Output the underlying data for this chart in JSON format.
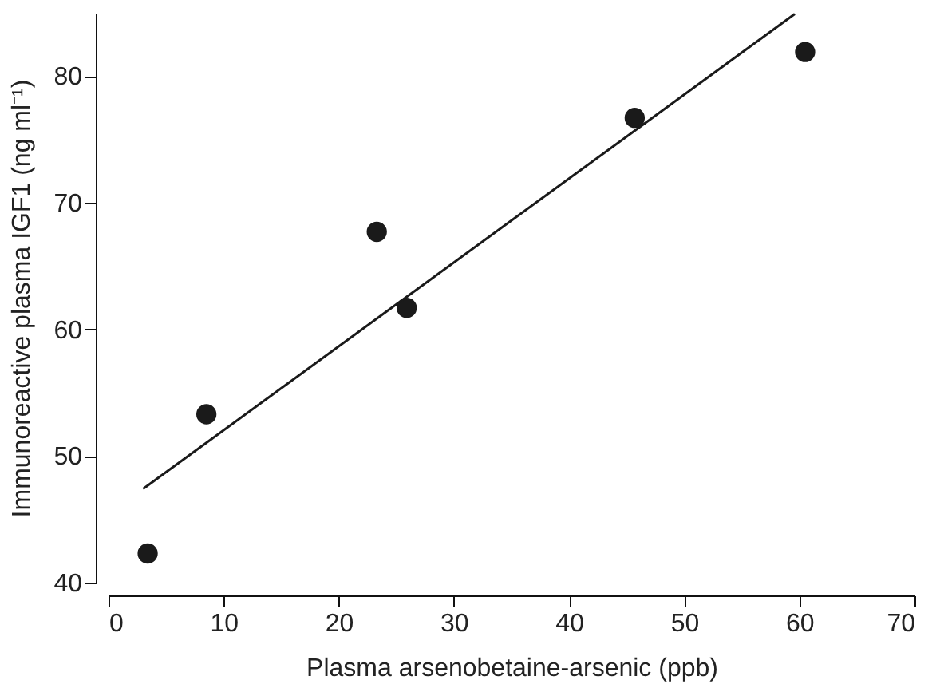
{
  "chart_data": {
    "type": "scatter",
    "xlabel": "Plasma arsenobetaine-arsenic (ppb)",
    "ylabel": "Immunoreactive plasma IGF1 (ng ml⁻¹)",
    "marker": "circle",
    "series": [
      {
        "color": "#1a1a1a",
        "x": [
          3.4,
          8.5,
          23.3,
          25.9,
          45.7,
          60.5
        ],
        "values": [
          42.3,
          53.3,
          67.7,
          61.7,
          76.7,
          81.9
        ]
      },
      {
        "type": "line",
        "color": "#1a1a1a",
        "line_style": "solid",
        "marker": "none",
        "x": [
          3.0,
          59.6
        ],
        "values": [
          47.4,
          84.9
        ]
      }
    ],
    "xlim": [
      0,
      70
    ],
    "xticks": [
      0,
      10,
      20,
      30,
      40,
      50,
      60,
      70
    ],
    "ylim": [
      40,
      85
    ],
    "yticks": [
      40,
      50,
      60,
      70,
      80
    ],
    "grid": false
  }
}
